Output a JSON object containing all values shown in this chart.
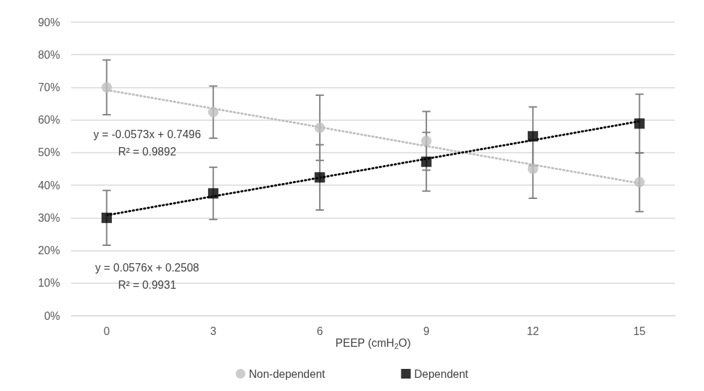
{
  "chart_data": {
    "type": "scatter",
    "xlabel": "PEEP (cmH$_{2}$O)",
    "x": [
      0,
      3,
      6,
      9,
      12,
      15
    ],
    "xlim": [
      -1,
      16
    ],
    "xticks": [
      0,
      3,
      6,
      9,
      12,
      15
    ],
    "ylim": [
      0,
      90
    ],
    "yticks": [
      {
        "value": 0,
        "label": "0%"
      },
      {
        "value": 10,
        "label": "10%"
      },
      {
        "value": 20,
        "label": "20%"
      },
      {
        "value": 30,
        "label": "30%"
      },
      {
        "value": 40,
        "label": "40%"
      },
      {
        "value": 50,
        "label": "50%"
      },
      {
        "value": 60,
        "label": "60%"
      },
      {
        "value": 70,
        "label": "70%"
      },
      {
        "value": 80,
        "label": "80%"
      },
      {
        "value": 90,
        "label": "90%"
      }
    ],
    "grid": "y",
    "legend": "bottom",
    "series": [
      {
        "name": "Non-dependent",
        "color": "#bfbfbf",
        "marker": "circle",
        "values": [
          70,
          62.4,
          57.6,
          53.6,
          45,
          40.9
        ],
        "errors": [
          8.4,
          8,
          10,
          9,
          9,
          9
        ]
      },
      {
        "name": "Dependent",
        "color": "#000000",
        "marker": "square",
        "values": [
          30,
          37.5,
          42.4,
          47.2,
          55,
          58.9
        ],
        "errors": [
          8.4,
          8,
          10,
          9,
          9,
          9
        ]
      },
      {
        "type": "line",
        "color": "#bfbfbf",
        "marker": "none",
        "line_style": "dotted",
        "values": [
          69.2,
          63.5,
          57.8,
          52.0,
          46.3,
          40.6
        ]
      },
      {
        "type": "line",
        "color": "#000000",
        "marker": "none",
        "line_style": "dotted",
        "values": [
          30.8,
          36.6,
          42.3,
          48.1,
          53.8,
          59.6
        ]
      }
    ],
    "annotations": [
      "y = -0.0573x + 0.7496\nR² = 0.9892",
      "y = 0.0576x + 0.2508\nR² = 0.9931"
    ]
  }
}
